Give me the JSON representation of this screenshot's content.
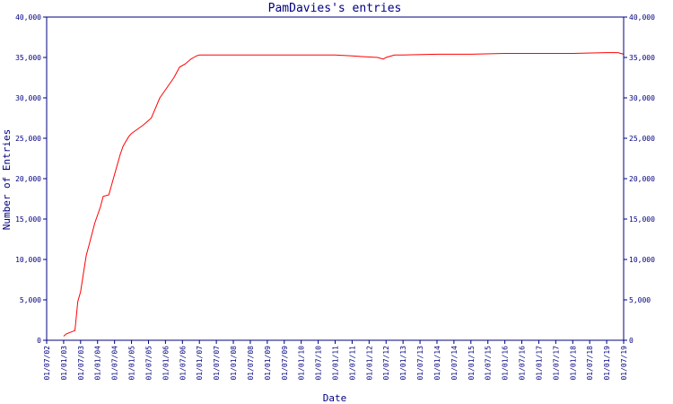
{
  "chart_data": {
    "type": "line",
    "title": "PamDavies's entries",
    "xlabel": "Date",
    "ylabel": "Number of Entries",
    "ylim": [
      0,
      40000
    ],
    "y_ticks": [
      0,
      5000,
      10000,
      15000,
      20000,
      25000,
      30000,
      35000,
      40000
    ],
    "y_tick_labels": [
      "0",
      "5,000",
      "10,000",
      "15,000",
      "20,000",
      "25,000",
      "30,000",
      "35,000",
      "40,000"
    ],
    "x_tick_labels": [
      "01/07/02",
      "01/01/03",
      "01/07/03",
      "01/01/04",
      "01/07/04",
      "01/01/05",
      "01/07/05",
      "01/01/06",
      "01/07/06",
      "01/01/07",
      "01/07/07",
      "01/01/08",
      "01/07/08",
      "01/01/09",
      "01/07/09",
      "01/01/10",
      "01/07/10",
      "01/01/11",
      "01/07/11",
      "01/01/12",
      "01/07/12",
      "01/01/13",
      "01/07/13",
      "01/01/14",
      "01/07/14",
      "01/01/15",
      "01/07/15",
      "01/01/16",
      "01/07/16",
      "01/01/17",
      "01/07/17",
      "01/01/18",
      "01/07/18",
      "01/01/19",
      "01/07/19"
    ],
    "xlim": [
      "01/07/02",
      "01/07/19"
    ],
    "grid": false,
    "legend": "none",
    "line_color": "#ff0000",
    "axis_color": "#000080",
    "series": [
      {
        "x": [
          "01/01/03",
          "01/02/03",
          "01/05/03",
          "01/06/03",
          "01/07/03",
          "01/09/03",
          "01/10/03",
          "01/12/03",
          "01/02/04",
          "01/03/04",
          "01/05/04",
          "01/07/04",
          "01/09/04",
          "01/10/04",
          "01/12/04",
          "01/01/05",
          "01/03/05",
          "01/05/05",
          "01/08/05",
          "01/11/05",
          "01/01/06",
          "01/04/06",
          "01/06/06",
          "01/08/06",
          "01/10/06",
          "01/11/06",
          "01/12/06",
          "01/01/07",
          "01/04/07",
          "01/07/07",
          "01/10/07",
          "01/01/08",
          "01/06/08",
          "01/01/09",
          "01/01/10",
          "01/01/11",
          "01/07/11",
          "01/11/11",
          "01/04/12",
          "01/06/12",
          "01/07/12",
          "01/10/12",
          "01/01/13",
          "01/01/14",
          "01/01/15",
          "01/01/16",
          "01/01/17",
          "01/01/18",
          "01/01/19",
          "01/05/19",
          "01/07/19"
        ],
        "y": [
          500,
          800,
          1200,
          4800,
          6000,
          10500,
          11800,
          14500,
          16500,
          17800,
          18000,
          20500,
          23000,
          24000,
          25200,
          25600,
          26100,
          26600,
          27500,
          30000,
          31000,
          32500,
          33800,
          34200,
          34800,
          35000,
          35200,
          35300,
          35300,
          35300,
          35300,
          35300,
          35300,
          35300,
          35300,
          35300,
          35200,
          35100,
          35000,
          34800,
          35000,
          35300,
          35300,
          35400,
          35400,
          35500,
          35500,
          35500,
          35600,
          35600,
          35400
        ]
      }
    ]
  }
}
